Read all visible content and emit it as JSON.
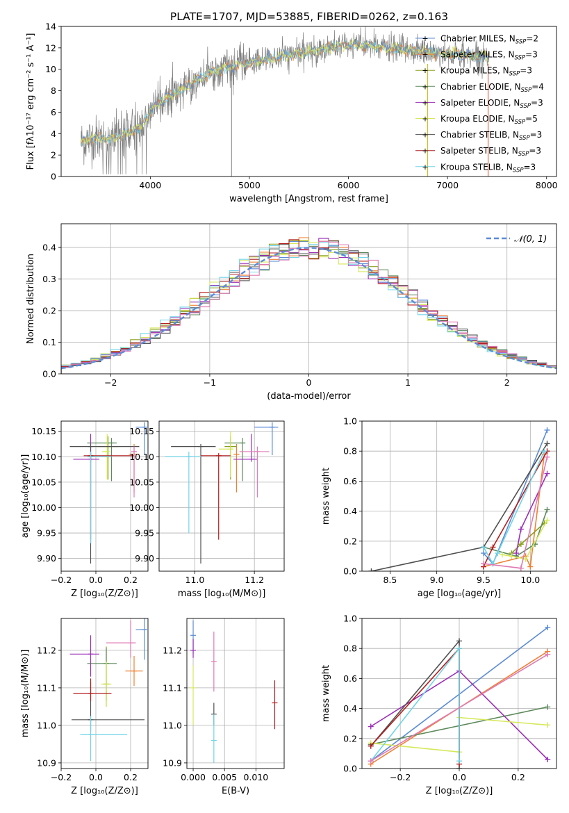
{
  "colors": [
    "#5b8bd6",
    "#f08030",
    "#8aa01e",
    "#5c8a5c",
    "#9b2fb8",
    "#d6e85a",
    "#505050",
    "#b41e1e",
    "#70d4e8",
    "#e07ab4",
    "#808080"
  ],
  "chart_data": [
    {
      "id": "spectrum",
      "type": "line",
      "title": "PLATE=1707, MJD=53885, FIBERID=0262, z=0.163",
      "xlabel": "wavelength [Angstrom, rest frame]",
      "ylabel": "Flux [f$_\\lambda$10$^{-17}$ erg cm$^{-2}$ s$^{-1}$ A$^{-1}$]",
      "ylabel_display": "Flux [fλ10⁻¹⁷ erg cm⁻² s⁻¹ A⁻¹]",
      "xlim": [
        3100,
        8100
      ],
      "ylim": [
        0,
        14
      ],
      "xticks": [
        4000,
        5000,
        6000,
        7000,
        8000
      ],
      "yticks": [
        0,
        2,
        4,
        6,
        8,
        10,
        12,
        14
      ],
      "legend_position": "top-right",
      "legend": [
        "Chabrier MILES, N_SSP=2",
        "Salpeter MILES, N_SSP=3",
        "Kroupa MILES, N_SSP=3",
        "Chabrier ELODIE, N_SSP=4",
        "Salpeter ELODIE, N_SSP=3",
        "Kroupa ELODIE, N_SSP=5",
        "Chabrier STELIB, N_SSP=3",
        "Salpeter STELIB, N_SSP=3",
        "Kroupa STELIB, N_SSP=3"
      ],
      "legend_display": [
        [
          "Chabrier MILES, N",
          "SSP",
          "=2"
        ],
        [
          "Salpeter MILES, N",
          "SSP",
          "=3"
        ],
        [
          "Kroupa MILES, N",
          "SSP",
          "=3"
        ],
        [
          "Chabrier ELODIE, N",
          "SSP",
          "=4"
        ],
        [
          "Salpeter ELODIE, N",
          "SSP",
          "=3"
        ],
        [
          "Kroupa ELODIE, N",
          "SSP",
          "=5"
        ],
        [
          "Chabrier STELIB, N",
          "SSP",
          "=3"
        ],
        [
          "Salpeter STELIB, N",
          "SSP",
          "=3"
        ],
        [
          "Kroupa STELIB, N",
          "SSP",
          "=3"
        ]
      ],
      "continuum": {
        "x": [
          3300,
          3400,
          3500,
          3600,
          3700,
          3800,
          3900,
          4000,
          4100,
          4200,
          4300,
          4400,
          4500,
          4600,
          4700,
          4800,
          4900,
          5000,
          5200,
          5400,
          5600,
          5800,
          6000,
          6200,
          6400,
          6600,
          6800,
          7000,
          7200,
          7400
        ],
        "y": [
          3.2,
          3.5,
          3.6,
          3.5,
          3.8,
          4.2,
          4.6,
          6.0,
          7.0,
          7.5,
          8.0,
          8.6,
          9.2,
          9.6,
          10.0,
          10.2,
          10.4,
          10.6,
          11.0,
          11.3,
          11.6,
          12.0,
          12.3,
          12.2,
          12.0,
          11.8,
          11.6,
          11.4,
          11.3,
          11.2
        ]
      },
      "vertical_spikes": [
        4820,
        6800,
        7410
      ]
    },
    {
      "id": "residuals",
      "type": "step",
      "xlabel": "(data-model)/error",
      "ylabel": "Normed distribution",
      "xlim": [
        -2.5,
        2.5
      ],
      "ylim": [
        0,
        0.475
      ],
      "xticks": [
        -2,
        -1,
        0,
        1,
        2
      ],
      "yticks": [
        0.0,
        0.1,
        0.2,
        0.3,
        0.4
      ],
      "grid": true,
      "legend_position": "top-right",
      "legend": [
        "𝒩(0, 1)"
      ],
      "reference_curve": "normal(0,1)",
      "bin_width": 0.1
    },
    {
      "id": "z-age",
      "type": "errorbar",
      "xlabel": "Z [log₁₀(Z/Z⊙)]",
      "ylabel": "age  [log₁₀(age/yr)]",
      "xlim": [
        -0.2,
        0.3
      ],
      "ylim": [
        9.875,
        10.17
      ],
      "xticks": [
        -0.2,
        0.0,
        0.2
      ],
      "yticks": [
        9.9,
        9.95,
        10.0,
        10.05,
        10.1,
        10.15
      ],
      "grid": true,
      "points": [
        {
          "c": 0,
          "x": 0.28,
          "xe": [
            0.05,
            0.01
          ],
          "y": 10.158,
          "ye": [
            0.055,
            0.01
          ]
        },
        {
          "c": 1,
          "x": 0.22,
          "xe": [
            0.03,
            0.01
          ],
          "y": 10.105,
          "ye": [
            0.075,
            0.02
          ]
        },
        {
          "c": 2,
          "x": 0.07,
          "xe": [
            0.06,
            0.06
          ],
          "y": 10.12,
          "ye": [
            0.065,
            0.02
          ]
        },
        {
          "c": 3,
          "x": 0.09,
          "xe": [
            0.14,
            0.03
          ],
          "y": 10.127,
          "ye": [
            0.075,
            0.01
          ]
        },
        {
          "c": 4,
          "x": -0.03,
          "xe": [
            0.1,
            0.05
          ],
          "y": 10.095,
          "ye": [
            0.005,
            0.05
          ]
        },
        {
          "c": 5,
          "x": 0.065,
          "xe": [
            0.03,
            0.01
          ],
          "y": 10.11,
          "ye": [
            0.055,
            0.035
          ]
        },
        {
          "c": 6,
          "x": -0.03,
          "xe": [
            0.12,
            0.28
          ],
          "y": 10.12,
          "ye": [
            0.23,
            0.005
          ]
        },
        {
          "c": 7,
          "x": -0.03,
          "xe": [
            0.04,
            0.25
          ],
          "y": 10.102,
          "ye": [
            0.165,
            0.005
          ]
        },
        {
          "c": 8,
          "x": -0.03,
          "xe": [
            0.02,
            0.12
          ],
          "y": 10.1,
          "ye": [
            0.17,
            0.01
          ]
        },
        {
          "c": 9,
          "x": 0.22,
          "xe": [
            0.0,
            0.01
          ],
          "y": 10.11,
          "ye": [
            0.09,
            0.01
          ]
        }
      ]
    },
    {
      "id": "mass-age",
      "type": "errorbar",
      "xlabel": "mass [log₁₀(M/M⊙)]",
      "ylabel": "",
      "xlim": [
        10.88,
        11.3
      ],
      "ylim": [
        9.875,
        10.17
      ],
      "xticks": [
        11.0,
        11.2
      ],
      "yticks": [
        9.9,
        9.95,
        10.0,
        10.05,
        10.1,
        10.15
      ],
      "grid": true,
      "points": [
        {
          "c": 0,
          "x": 11.26,
          "xe": [
            0.06,
            0.02
          ],
          "y": 10.158,
          "ye": [
            0.055,
            0.01
          ]
        },
        {
          "c": 1,
          "x": 11.14,
          "xe": [
            0.01,
            0.01
          ],
          "y": 10.105,
          "ye": [
            0.075,
            0.02
          ]
        },
        {
          "c": 2,
          "x": 11.12,
          "xe": [
            0.02,
            0.02
          ],
          "y": 10.12,
          "ye": [
            0.065,
            0.02
          ]
        },
        {
          "c": 3,
          "x": 11.16,
          "xe": [
            0.06,
            0.01
          ],
          "y": 10.127,
          "ye": [
            0.075,
            0.01
          ]
        },
        {
          "c": 4,
          "x": 11.19,
          "xe": [
            0.06,
            0.02
          ],
          "y": 10.095,
          "ye": [
            0.005,
            0.05
          ]
        },
        {
          "c": 5,
          "x": 11.12,
          "xe": [
            0.04,
            0.01
          ],
          "y": 10.115,
          "ye": [
            0.055,
            0.035
          ]
        },
        {
          "c": 6,
          "x": 11.02,
          "xe": [
            0.1,
            0.05
          ],
          "y": 10.12,
          "ye": [
            0.23,
            0.005
          ]
        },
        {
          "c": 7,
          "x": 11.08,
          "xe": [
            0.06,
            0.04
          ],
          "y": 10.102,
          "ye": [
            0.165,
            0.005
          ]
        },
        {
          "c": 8,
          "x": 10.98,
          "xe": [
            0.08,
            0.04
          ],
          "y": 10.1,
          "ye": [
            0.15,
            0.01
          ]
        },
        {
          "c": 9,
          "x": 11.21,
          "xe": [
            0.06,
            0.04
          ],
          "y": 10.11,
          "ye": [
            0.09,
            0.01
          ]
        }
      ]
    },
    {
      "id": "age-weight",
      "type": "line",
      "xlabel": "age  [log₁₀(age/yr)]",
      "ylabel": "mass weight",
      "xlim": [
        8.2,
        10.28
      ],
      "ylim": [
        0,
        1.0
      ],
      "xticks": [
        8.5,
        9.0,
        9.5,
        10.0
      ],
      "yticks": [
        0.0,
        0.2,
        0.4,
        0.6,
        0.8,
        1.0
      ],
      "grid": true,
      "series": [
        {
          "c": 0,
          "x": [
            9.5,
            9.6,
            10.18
          ],
          "y": [
            0.12,
            0.05,
            0.94
          ]
        },
        {
          "c": 1,
          "x": [
            9.5,
            9.95,
            10.0,
            10.15
          ],
          "y": [
            0.03,
            0.1,
            0.03,
            0.78
          ]
        },
        {
          "c": 2,
          "x": [
            9.8,
            9.9,
            10.15
          ],
          "y": [
            0.12,
            0.18,
            0.32
          ]
        },
        {
          "c": 3,
          "x": [
            9.5,
            9.85,
            10.05,
            10.18
          ],
          "y": [
            0.16,
            0.1,
            0.18,
            0.41
          ]
        },
        {
          "c": 4,
          "x": [
            9.85,
            9.9,
            10.18
          ],
          "y": [
            0.12,
            0.28,
            0.65
          ]
        },
        {
          "c": 5,
          "x": [
            9.7,
            9.8,
            9.95,
            10.18
          ],
          "y": [
            0.11,
            0.1,
            0.08,
            0.34
          ]
        },
        {
          "c": 6,
          "x": [
            8.3,
            9.5,
            10.18
          ],
          "y": [
            0.0,
            0.16,
            0.85
          ]
        },
        {
          "c": 7,
          "x": [
            9.5,
            9.6,
            10.18
          ],
          "y": [
            0.03,
            0.16,
            0.8
          ]
        },
        {
          "c": 8,
          "x": [
            9.5,
            9.6,
            9.65,
            10.15
          ],
          "y": [
            0.16,
            0.05,
            0.12,
            0.8
          ]
        },
        {
          "c": 9,
          "x": [
            9.5,
            9.9,
            10.18
          ],
          "y": [
            0.05,
            0.02,
            0.76
          ]
        }
      ]
    },
    {
      "id": "z-mass",
      "type": "errorbar",
      "xlabel": "Z [log₁₀(Z/Z⊙)]",
      "ylabel": "mass [log₁₀(M/M⊙)]",
      "xlim": [
        -0.2,
        0.3
      ],
      "ylim": [
        10.885,
        11.285
      ],
      "xticks": [
        -0.2,
        0.0,
        0.2
      ],
      "yticks": [
        10.9,
        11.0,
        11.1,
        11.2
      ],
      "grid": true,
      "points": [
        {
          "c": 0,
          "x": 0.28,
          "xe": [
            0.05,
            0.01
          ],
          "y": 11.255,
          "ye": [
            0.08,
            0.03
          ]
        },
        {
          "c": 1,
          "x": 0.22,
          "xe": [
            0.05,
            0.05
          ],
          "y": 11.145,
          "ye": [
            0.04,
            0.04
          ]
        },
        {
          "c": 2,
          "x": 0.06,
          "xe": [
            0.02,
            0.02
          ],
          "y": 11.11,
          "ye": [
            0.06,
            0.1
          ]
        },
        {
          "c": 3,
          "x": 0.06,
          "xe": [
            0.11,
            0.06
          ],
          "y": 11.165,
          "ye": [
            0.1,
            0.04
          ]
        },
        {
          "c": 4,
          "x": -0.03,
          "xe": [
            0.12,
            0.05
          ],
          "y": 11.19,
          "ye": [
            0.06,
            0.05
          ]
        },
        {
          "c": 5,
          "x": 0.06,
          "xe": [
            0.03,
            0.03
          ],
          "y": 11.11,
          "ye": [
            0.06,
            0.06
          ]
        },
        {
          "c": 6,
          "x": -0.03,
          "xe": [
            0.11,
            0.31
          ],
          "y": 11.015,
          "ye": [
            0.03,
            0.1
          ]
        },
        {
          "c": 7,
          "x": -0.03,
          "xe": [
            0.1,
            0.12
          ],
          "y": 11.085,
          "ye": [
            0.02,
            0.04
          ]
        },
        {
          "c": 8,
          "x": -0.03,
          "xe": [
            0.06,
            0.21
          ],
          "y": 10.975,
          "ye": [
            0.07,
            0.05
          ]
        },
        {
          "c": 9,
          "x": 0.2,
          "xe": [
            0.14,
            0.03
          ],
          "y": 11.22,
          "ye": [
            0.04,
            0.06
          ]
        }
      ]
    },
    {
      "id": "ebv-mass",
      "type": "errorbar",
      "xlabel": "E(B-V)",
      "ylabel": "",
      "xlim": [
        -0.001,
        0.0145
      ],
      "ylim": [
        10.885,
        11.285
      ],
      "xticks": [
        0.0,
        0.005,
        0.01
      ],
      "xticklabels": [
        "0.000",
        "0.005",
        "0.010"
      ],
      "yticks": [
        10.9,
        11.0,
        11.1,
        11.2
      ],
      "grid": true,
      "points": [
        {
          "c": 0,
          "x": 0.0,
          "y": 11.24,
          "ye": [
            0.05,
            0.04
          ]
        },
        {
          "c": 4,
          "x": 0.0,
          "y": 11.2,
          "ye": [
            0.02,
            0.03
          ]
        },
        {
          "c": 5,
          "x": 0.0,
          "y": 11.1,
          "ye": [
            0.1,
            0.06
          ]
        },
        {
          "c": 9,
          "x": 0.0033,
          "y": 11.17,
          "ye": [
            0.08,
            0.08
          ]
        },
        {
          "c": 6,
          "x": 0.0033,
          "y": 11.03,
          "ye": [
            0.03,
            0.03
          ]
        },
        {
          "c": 8,
          "x": 0.0033,
          "y": 10.96,
          "ye": [
            0.06,
            0.07
          ]
        },
        {
          "c": 7,
          "x": 0.013,
          "y": 11.06,
          "ye": [
            0.07,
            0.06
          ]
        }
      ]
    },
    {
      "id": "z-weight",
      "type": "line",
      "xlabel": "Z [log₁₀(Z/Z⊙)]",
      "ylabel": "mass weight",
      "xlim": [
        -0.33,
        0.33
      ],
      "ylim": [
        0,
        1.0
      ],
      "xticks": [
        -0.2,
        0.0,
        0.2
      ],
      "yticks": [
        0.0,
        0.2,
        0.4,
        0.6,
        0.8,
        1.0
      ],
      "grid": true,
      "series": [
        {
          "c": 0,
          "x": [
            -0.3,
            0.3
          ],
          "y": [
            0.05,
            0.94
          ]
        },
        {
          "c": 1,
          "x": [
            -0.3,
            0.3
          ],
          "y": [
            0.03,
            0.78
          ]
        },
        {
          "c": 3,
          "x": [
            -0.3,
            0.3
          ],
          "y": [
            0.16,
            0.41
          ]
        },
        {
          "c": 4,
          "x": [
            -0.3,
            0.0,
            0.3
          ],
          "y": [
            0.28,
            0.65,
            0.06
          ]
        },
        {
          "c": 5,
          "x": [
            -0.3,
            0.0,
            0.0,
            0.3
          ],
          "y": [
            0.17,
            0.11,
            0.34,
            0.29
          ]
        },
        {
          "c": 6,
          "x": [
            -0.3,
            0.0,
            0.0
          ],
          "y": [
            0.15,
            0.85,
            0.0
          ]
        },
        {
          "c": 7,
          "x": [
            -0.3,
            0.0,
            0.0
          ],
          "y": [
            0.15,
            0.8,
            0.03
          ]
        },
        {
          "c": 8,
          "x": [
            -0.3,
            0.0,
            0.0
          ],
          "y": [
            0.05,
            0.8,
            0.05
          ]
        },
        {
          "c": 9,
          "x": [
            -0.3,
            0.3
          ],
          "y": [
            0.05,
            0.76
          ]
        }
      ]
    }
  ]
}
